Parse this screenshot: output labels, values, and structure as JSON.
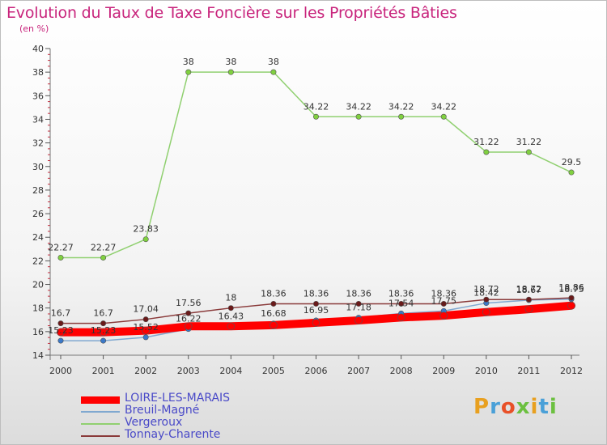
{
  "header": {
    "title": "Evolution du Taux de Taxe Foncière sur les Propriétés Bâties",
    "subtitle": "(en %)"
  },
  "brand": {
    "letters": [
      "P",
      "r",
      "o",
      "x",
      "i",
      "t",
      "i"
    ],
    "colors": [
      "#e8a020",
      "#4aa0d8",
      "#e85028",
      "#6cc040",
      "#e8a020",
      "#4aa0d8",
      "#6cc040"
    ]
  },
  "chart_data": {
    "type": "line",
    "title": "Evolution du Taux de Taxe Foncière sur les Propriétés Bâties",
    "ylabel": "(en %)",
    "xlabel": "",
    "ylim": [
      14,
      40
    ],
    "yticks": [
      14,
      16,
      18,
      20,
      22,
      24,
      26,
      28,
      30,
      32,
      34,
      36,
      38,
      40
    ],
    "categories": [
      "2000",
      "2001",
      "2002",
      "2003",
      "2004",
      "2005",
      "2006",
      "2007",
      "2008",
      "2009",
      "2010",
      "2011",
      "2012"
    ],
    "grid": false,
    "legend_position": "bottom-left",
    "series": [
      {
        "name": "LOIRE-LES-MARAIS",
        "color": "#ff0000",
        "marker_color": "#ff0000",
        "width": 10,
        "show_labels": false,
        "values": [
          15.95,
          15.95,
          16.08,
          16.45,
          16.45,
          16.55,
          16.75,
          16.95,
          17.2,
          17.35,
          17.65,
          17.9,
          18.2
        ]
      },
      {
        "name": "Breuil-Magné",
        "color": "#80a8d0",
        "marker_color": "#3a78c8",
        "width": 1.5,
        "show_labels": true,
        "values": [
          15.23,
          15.23,
          15.52,
          16.22,
          16.43,
          16.68,
          16.95,
          17.18,
          17.54,
          17.75,
          18.42,
          18.67,
          18.75
        ]
      },
      {
        "name": "Vergeroux",
        "color": "#90d070",
        "marker_color": "#80d040",
        "width": 1.5,
        "show_labels": true,
        "values": [
          22.27,
          22.27,
          23.83,
          38,
          38,
          38,
          34.22,
          34.22,
          34.22,
          34.22,
          31.22,
          31.22,
          29.5
        ]
      },
      {
        "name": "Tonnay-Charente",
        "color": "#8a3a3a",
        "marker_color": "#6a1a1a",
        "width": 1.5,
        "show_labels": true,
        "values": [
          16.7,
          16.7,
          17.04,
          17.56,
          18,
          18.36,
          18.36,
          18.36,
          18.36,
          18.36,
          18.72,
          18.72,
          18.86
        ]
      }
    ]
  }
}
